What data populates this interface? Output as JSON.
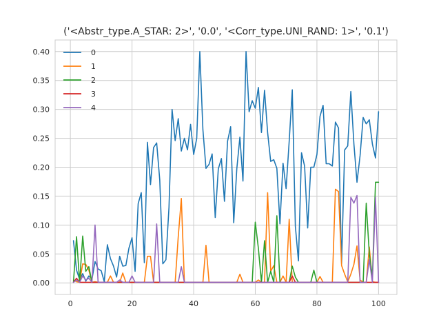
{
  "chart_data": {
    "type": "line",
    "title": "('<Abstr_type.A_STAR: 2>', '0.0', '<Corr_type.UNI_RAND: 1>', '0.1')",
    "xlabel": "",
    "ylabel": "",
    "xlim": [
      -4.95,
      105.95
    ],
    "ylim": [
      -0.02,
      0.42
    ],
    "x_ticks": [
      0,
      20,
      40,
      60,
      80,
      100
    ],
    "y_ticks": [
      0.0,
      0.05,
      0.1,
      0.15,
      0.2,
      0.25,
      0.3,
      0.35,
      0.4
    ],
    "y_tick_labels": [
      "0.00",
      "0.05",
      "0.10",
      "0.15",
      "0.20",
      "0.25",
      "0.30",
      "0.35",
      "0.40"
    ],
    "grid": true,
    "legend_position": "top-left",
    "x": [
      1,
      2,
      3,
      4,
      5,
      6,
      7,
      8,
      9,
      10,
      11,
      12,
      13,
      14,
      15,
      16,
      17,
      18,
      19,
      20,
      21,
      22,
      23,
      24,
      25,
      26,
      27,
      28,
      29,
      30,
      31,
      32,
      33,
      34,
      35,
      36,
      37,
      38,
      39,
      40,
      41,
      42,
      43,
      44,
      45,
      46,
      47,
      48,
      49,
      50,
      51,
      52,
      53,
      54,
      55,
      56,
      57,
      58,
      59,
      60,
      61,
      62,
      63,
      64,
      65,
      66,
      67,
      68,
      69,
      70,
      71,
      72,
      73,
      74,
      75,
      76,
      77,
      78,
      79,
      80,
      81,
      82,
      83,
      84,
      85,
      86,
      87,
      88,
      89,
      90,
      91,
      92,
      93,
      94,
      95,
      96,
      97,
      98,
      99,
      100
    ],
    "series": [
      {
        "name": "0",
        "color": "#1f77b4",
        "values": [
          0.073,
          0.022,
          0.006,
          0.016,
          0.003,
          0.012,
          0.006,
          0.037,
          0.024,
          0.021,
          0.002,
          0.066,
          0.042,
          0.029,
          0.01,
          0.046,
          0.029,
          0.03,
          0.06,
          0.078,
          0.02,
          0.137,
          0.156,
          0.035,
          0.243,
          0.17,
          0.234,
          0.242,
          0.178,
          0.033,
          0.04,
          0.131,
          0.3,
          0.246,
          0.284,
          0.228,
          0.25,
          0.23,
          0.274,
          0.222,
          0.25,
          0.4,
          0.265,
          0.198,
          0.205,
          0.223,
          0.113,
          0.197,
          0.215,
          0.141,
          0.245,
          0.27,
          0.104,
          0.197,
          0.252,
          0.176,
          0.4,
          0.296,
          0.315,
          0.302,
          0.338,
          0.26,
          0.333,
          0.26,
          0.21,
          0.213,
          0.198,
          0.102,
          0.207,
          0.163,
          0.245,
          0.334,
          0.098,
          0.038,
          0.225,
          0.202,
          0.095,
          0.2,
          0.2,
          0.222,
          0.288,
          0.307,
          0.206,
          0.206,
          0.202,
          0.278,
          0.268,
          0.033,
          0.23,
          0.237,
          0.331,
          0.24,
          0.174,
          0.22,
          0.286,
          0.275,
          0.282,
          0.24,
          0.216,
          0.296
        ]
      },
      {
        "name": "1",
        "color": "#ff7f0e",
        "values": [
          0.005,
          0.002,
          0.001,
          0.033,
          0.032,
          0.022,
          0.001,
          0.002,
          0.001,
          0.001,
          0.001,
          0.001,
          0.012,
          0.001,
          0.001,
          0.001,
          0.017,
          0.001,
          0.001,
          0.001,
          0.001,
          0.001,
          0.001,
          0.001,
          0.046,
          0.046,
          0.001,
          0.001,
          0.001,
          0.001,
          0.001,
          0.001,
          0.001,
          0.001,
          0.08,
          0.146,
          0.001,
          0.001,
          0.001,
          0.001,
          0.001,
          0.001,
          0.001,
          0.065,
          0.001,
          0.001,
          0.001,
          0.001,
          0.001,
          0.001,
          0.001,
          0.001,
          0.001,
          0.001,
          0.015,
          0.001,
          0.001,
          0.001,
          0.001,
          0.001,
          0.005,
          0.001,
          0.001,
          0.156,
          0.02,
          0.03,
          0.001,
          0.001,
          0.012,
          0.001,
          0.11,
          0.001,
          0.001,
          0.001,
          0.001,
          0.001,
          0.001,
          0.001,
          0.001,
          0.001,
          0.011,
          0.001,
          0.001,
          0.001,
          0.001,
          0.162,
          0.158,
          0.03,
          0.015,
          0.002,
          0.015,
          0.032,
          0.064,
          0.005,
          0.001,
          0.001,
          0.062,
          0.002,
          0.001,
          0.001
        ]
      },
      {
        "name": "2",
        "color": "#2ca02c",
        "values": [
          0.001,
          0.08,
          0.001,
          0.081,
          0.02,
          0.028,
          0.001,
          0.001,
          0.001,
          0.001,
          0.001,
          0.001,
          0.001,
          0.001,
          0.001,
          0.001,
          0.001,
          0.001,
          0.001,
          0.001,
          0.001,
          0.001,
          0.001,
          0.001,
          0.001,
          0.001,
          0.001,
          0.001,
          0.001,
          0.001,
          0.001,
          0.001,
          0.001,
          0.001,
          0.001,
          0.001,
          0.001,
          0.001,
          0.001,
          0.001,
          0.001,
          0.001,
          0.001,
          0.001,
          0.001,
          0.001,
          0.001,
          0.001,
          0.001,
          0.001,
          0.001,
          0.001,
          0.001,
          0.001,
          0.001,
          0.001,
          0.001,
          0.001,
          0.001,
          0.105,
          0.06,
          0.001,
          0.073,
          0.001,
          0.02,
          0.001,
          0.116,
          0.001,
          0.001,
          0.001,
          0.001,
          0.029,
          0.01,
          0.001,
          0.001,
          0.001,
          0.001,
          0.001,
          0.022,
          0.001,
          0.001,
          0.001,
          0.001,
          0.001,
          0.001,
          0.001,
          0.001,
          0.001,
          0.001,
          0.001,
          0.001,
          0.001,
          0.001,
          0.001,
          0.001,
          0.138,
          0.05,
          0.01,
          0.174,
          0.174
        ]
      },
      {
        "name": "3",
        "color": "#d62728",
        "values": [
          0.001,
          0.008,
          0.001,
          0.001,
          0.001,
          0.001,
          0.001,
          0.001,
          0.001,
          0.001,
          0.001,
          0.001,
          0.001,
          0.001,
          0.001,
          0.001,
          0.001,
          0.001,
          0.001,
          0.001,
          0.001,
          0.001,
          0.001,
          0.001,
          0.001,
          0.001,
          0.001,
          0.001,
          0.001,
          0.001,
          0.001,
          0.001,
          0.001,
          0.001,
          0.001,
          0.001,
          0.001,
          0.001,
          0.001,
          0.001,
          0.001,
          0.001,
          0.001,
          0.001,
          0.001,
          0.001,
          0.001,
          0.001,
          0.001,
          0.001,
          0.001,
          0.001,
          0.001,
          0.001,
          0.001,
          0.001,
          0.001,
          0.001,
          0.001,
          0.001,
          0.001,
          0.001,
          0.001,
          0.001,
          0.001,
          0.001,
          0.001,
          0.001,
          0.001,
          0.001,
          0.001,
          0.012,
          0.001,
          0.001,
          0.001,
          0.001,
          0.001,
          0.001,
          0.001,
          0.001,
          0.001,
          0.001,
          0.001,
          0.001,
          0.001,
          0.001,
          0.001,
          0.001,
          0.001,
          0.001,
          0.001,
          0.001,
          0.001,
          0.001,
          0.001,
          0.001,
          0.001,
          0.001,
          0.001,
          0.001
        ]
      },
      {
        "name": "4",
        "color": "#9467bd",
        "values": [
          0.001,
          0.005,
          0.001,
          0.012,
          0.005,
          0.008,
          0.001,
          0.1,
          0.001,
          0.001,
          0.001,
          0.001,
          0.001,
          0.001,
          0.001,
          0.005,
          0.001,
          0.001,
          0.001,
          0.012,
          0.001,
          0.001,
          0.001,
          0.001,
          0.001,
          0.001,
          0.001,
          0.102,
          0.001,
          0.001,
          0.001,
          0.001,
          0.001,
          0.001,
          0.001,
          0.028,
          0.001,
          0.001,
          0.001,
          0.001,
          0.001,
          0.001,
          0.001,
          0.001,
          0.001,
          0.001,
          0.001,
          0.001,
          0.001,
          0.001,
          0.001,
          0.001,
          0.001,
          0.001,
          0.001,
          0.001,
          0.001,
          0.001,
          0.001,
          0.001,
          0.001,
          0.001,
          0.001,
          0.001,
          0.001,
          0.001,
          0.001,
          0.001,
          0.001,
          0.001,
          0.001,
          0.001,
          0.001,
          0.001,
          0.001,
          0.001,
          0.001,
          0.001,
          0.001,
          0.001,
          0.001,
          0.001,
          0.001,
          0.001,
          0.001,
          0.001,
          0.001,
          0.001,
          0.001,
          0.001,
          0.148,
          0.138,
          0.151,
          0.001,
          0.001,
          0.001,
          0.04,
          0.001,
          0.148,
          0.001
        ]
      }
    ]
  }
}
